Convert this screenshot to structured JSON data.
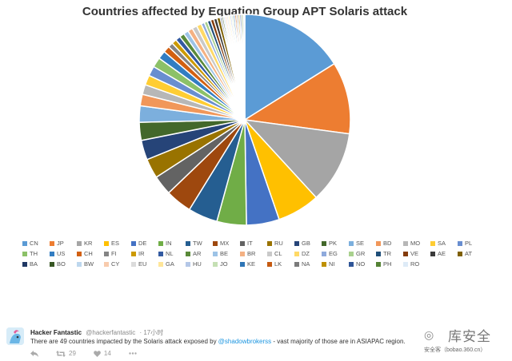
{
  "chart_data": {
    "type": "pie",
    "title": "Countries affected by Equation Group APT Solaris attack",
    "legend_position": "bottom",
    "categories": [
      "CN",
      "JP",
      "KR",
      "ES",
      "DE",
      "IN",
      "TW",
      "MX",
      "IT",
      "RU",
      "GB",
      "PK",
      "SE",
      "BD",
      "MO",
      "SA",
      "PL",
      "TH",
      "US",
      "CH",
      "FI",
      "IR",
      "NL",
      "AR",
      "BE",
      "BR",
      "CL",
      "DZ",
      "EG",
      "GR",
      "TR",
      "VE",
      "AE",
      "AT",
      "BA",
      "BO",
      "BW",
      "CY",
      "EU",
      "GA",
      "HU",
      "JO",
      "KE",
      "LK",
      "NA",
      "NI",
      "NO",
      "PH",
      "RO"
    ],
    "values": [
      64,
      44,
      44,
      26,
      20,
      18,
      18,
      16,
      12,
      12,
      12,
      11,
      10,
      7,
      6,
      6,
      6,
      6,
      5,
      4,
      3,
      3,
      3,
      3,
      3,
      3,
      3,
      3,
      2,
      2,
      2,
      2,
      2,
      2,
      1,
      1,
      1,
      1,
      1,
      1,
      1,
      1,
      1,
      1,
      1,
      1,
      1,
      1,
      1
    ],
    "colors": [
      "#5b9bd5",
      "#ed7d31",
      "#a5a5a5",
      "#ffc000",
      "#4472c4",
      "#70ad47",
      "#255e91",
      "#9e480e",
      "#636363",
      "#997300",
      "#264478",
      "#43682b",
      "#7cafdd",
      "#f1975a",
      "#b7b7b7",
      "#ffcd33",
      "#698ed0",
      "#8cc168",
      "#327dc2",
      "#d26012",
      "#848484",
      "#cc9a00",
      "#335aa1",
      "#5a8a39",
      "#9dc3e6",
      "#f4b183",
      "#c9c9c9",
      "#ffd966",
      "#8faadc",
      "#a9d18e",
      "#1f4e79",
      "#843c0c",
      "#3a3a3a",
      "#7f6000",
      "#203864",
      "#375623",
      "#bdd7ee",
      "#f8cbad",
      "#dbdbdb",
      "#ffe699",
      "#b4c7e7",
      "#c5e0b4",
      "#2e75b6",
      "#c55a11",
      "#7b7b7b",
      "#bf9000",
      "#2f5597",
      "#548235",
      "#deebf7"
    ]
  },
  "tweet": {
    "name": "Hacker Fantastic",
    "handle": "@hackerfantastic",
    "time": "17小时",
    "text_before": "There are 49 countries impacted by the Solaris attack exposed by ",
    "mention": "@shadowbrokerss",
    "text_after": " - vast majority of those are in ASIAPAC region.",
    "retweet_count": "29",
    "like_count": "14",
    "icons": {
      "reply": "reply-icon",
      "retweet": "retweet-icon",
      "like": "heart-icon",
      "more": "more-icon"
    }
  },
  "watermark": {
    "logo_text": "库安全",
    "sub_text": "安全客（bobao.360.cn）"
  }
}
